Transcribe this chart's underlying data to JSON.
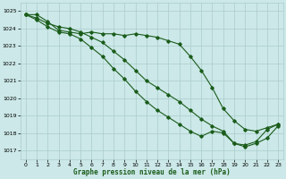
{
  "xlabel": "Graphe pression niveau de la mer (hPa)",
  "bg_color": "#cce8e8",
  "grid_color": "#aacccc",
  "line_color": "#1a5c1a",
  "x": [
    0,
    1,
    2,
    3,
    4,
    5,
    6,
    7,
    8,
    9,
    10,
    11,
    12,
    13,
    14,
    15,
    16,
    17,
    18,
    19,
    20,
    21,
    22,
    23
  ],
  "line1": [
    1024.8,
    1024.8,
    1024.4,
    1023.9,
    1023.8,
    1023.7,
    1023.8,
    1023.7,
    1023.7,
    1023.6,
    1023.7,
    1023.6,
    1023.5,
    1023.3,
    1023.1,
    1022.4,
    1021.6,
    1020.6,
    1019.4,
    1018.7,
    1018.2,
    1018.1,
    1018.3,
    1018.5
  ],
  "line2": [
    1024.8,
    1024.6,
    1024.3,
    1024.1,
    1024.0,
    1023.8,
    1023.5,
    1023.2,
    1022.7,
    1022.2,
    1021.6,
    1021.0,
    1020.6,
    1020.2,
    1019.8,
    1019.3,
    1018.8,
    1018.4,
    1018.1,
    1017.4,
    1017.3,
    1017.5,
    1018.2,
    1018.5
  ],
  "line3": [
    1024.8,
    1024.5,
    1024.1,
    1023.8,
    1023.7,
    1023.4,
    1022.9,
    1022.4,
    1021.7,
    1021.1,
    1020.4,
    1019.8,
    1019.3,
    1018.9,
    1018.5,
    1018.1,
    1017.8,
    1018.1,
    1018.0,
    1017.4,
    1017.2,
    1017.4,
    1017.7,
    1018.4
  ],
  "ylim": [
    1016.5,
    1025.5
  ],
  "yticks": [
    1017,
    1018,
    1019,
    1020,
    1021,
    1022,
    1023,
    1024,
    1025
  ],
  "xlim": [
    -0.5,
    23.5
  ],
  "xticks": [
    0,
    1,
    2,
    3,
    4,
    5,
    6,
    7,
    8,
    9,
    10,
    11,
    12,
    13,
    14,
    15,
    16,
    17,
    18,
    19,
    20,
    21,
    22,
    23
  ]
}
